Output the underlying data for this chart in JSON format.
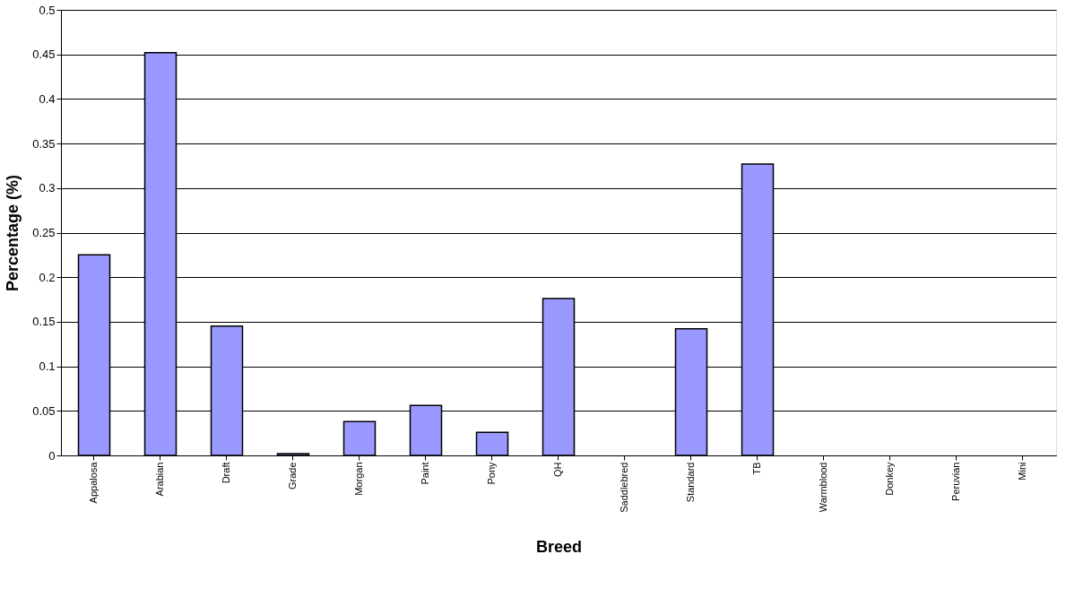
{
  "chart_data": {
    "type": "bar",
    "xlabel": "Breed",
    "ylabel": "Percentage (%)",
    "categories": [
      "Appalosa",
      "Arabian",
      "Draft",
      "Grade",
      "Morgan",
      "Paint",
      "Pony",
      "QH",
      "Saddlebred",
      "Standard",
      "TB",
      "Warmblood",
      "Donkey",
      "Peruvian",
      "Mini"
    ],
    "values": [
      0.225,
      0.452,
      0.145,
      0.002,
      0.038,
      0.056,
      0.026,
      0.176,
      0,
      0.142,
      0.327,
      0,
      0,
      0,
      0
    ],
    "color": "#9999ff",
    "ylim": [
      0,
      0.5
    ],
    "yticks": [
      0,
      0.05,
      0.1,
      0.15,
      0.2,
      0.25,
      0.3,
      0.35,
      0.4,
      0.45,
      0.5
    ],
    "grid": "y"
  }
}
